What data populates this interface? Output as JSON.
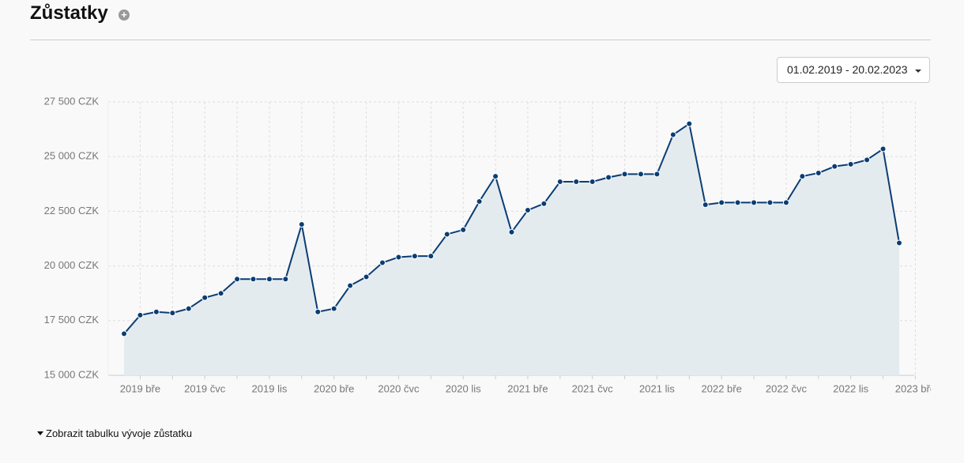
{
  "header": {
    "title": "Zůstatky"
  },
  "date_range": "01.02.2019 - 20.02.2023",
  "toggle": "Zobrazit tabulku vývoje zůstatku",
  "chart_data": {
    "type": "area",
    "categories": [
      null,
      "2019 bře",
      null,
      null,
      null,
      "2019 čvc",
      null,
      null,
      null,
      "2019 lis",
      null,
      null,
      null,
      "2020 bře",
      null,
      null,
      null,
      "2020 čvc",
      null,
      null,
      null,
      "2020 lis",
      null,
      null,
      null,
      "2021 bře",
      null,
      null,
      null,
      "2021 čvc",
      null,
      null,
      null,
      "2021 lis",
      null,
      null,
      null,
      "2022 bře",
      null,
      null,
      null,
      "2022 čvc",
      null,
      null,
      null,
      "2022 lis",
      null,
      null,
      null,
      "2023 bře"
    ],
    "values": [
      16900,
      17750,
      17900,
      17850,
      18050,
      18550,
      18750,
      19400,
      19400,
      19400,
      19400,
      21900,
      17900,
      18050,
      19100,
      19500,
      20150,
      20400,
      20450,
      20450,
      21450,
      21650,
      22950,
      24100,
      21550,
      22550,
      22850,
      23850,
      23850,
      23850,
      24050,
      24200,
      24200,
      24200,
      26000,
      26500,
      22800,
      22900,
      22900,
      22900,
      22900,
      22900,
      24100,
      24250,
      24550,
      24650,
      24850,
      25350,
      21050,
      null
    ],
    "color": "#0b3d74",
    "fill": "#e4ebef",
    "ylim": [
      15000,
      27500
    ],
    "yticks": [
      {
        "value": 15000,
        "label": "15 000 CZK"
      },
      {
        "value": 17500,
        "label": "17 500 CZK"
      },
      {
        "value": 20000,
        "label": "20 000 CZK"
      },
      {
        "value": 22500,
        "label": "22 500 CZK"
      },
      {
        "value": 25000,
        "label": "25 000 CZK"
      },
      {
        "value": 27500,
        "label": "27 500 CZK"
      }
    ],
    "grid": true
  }
}
